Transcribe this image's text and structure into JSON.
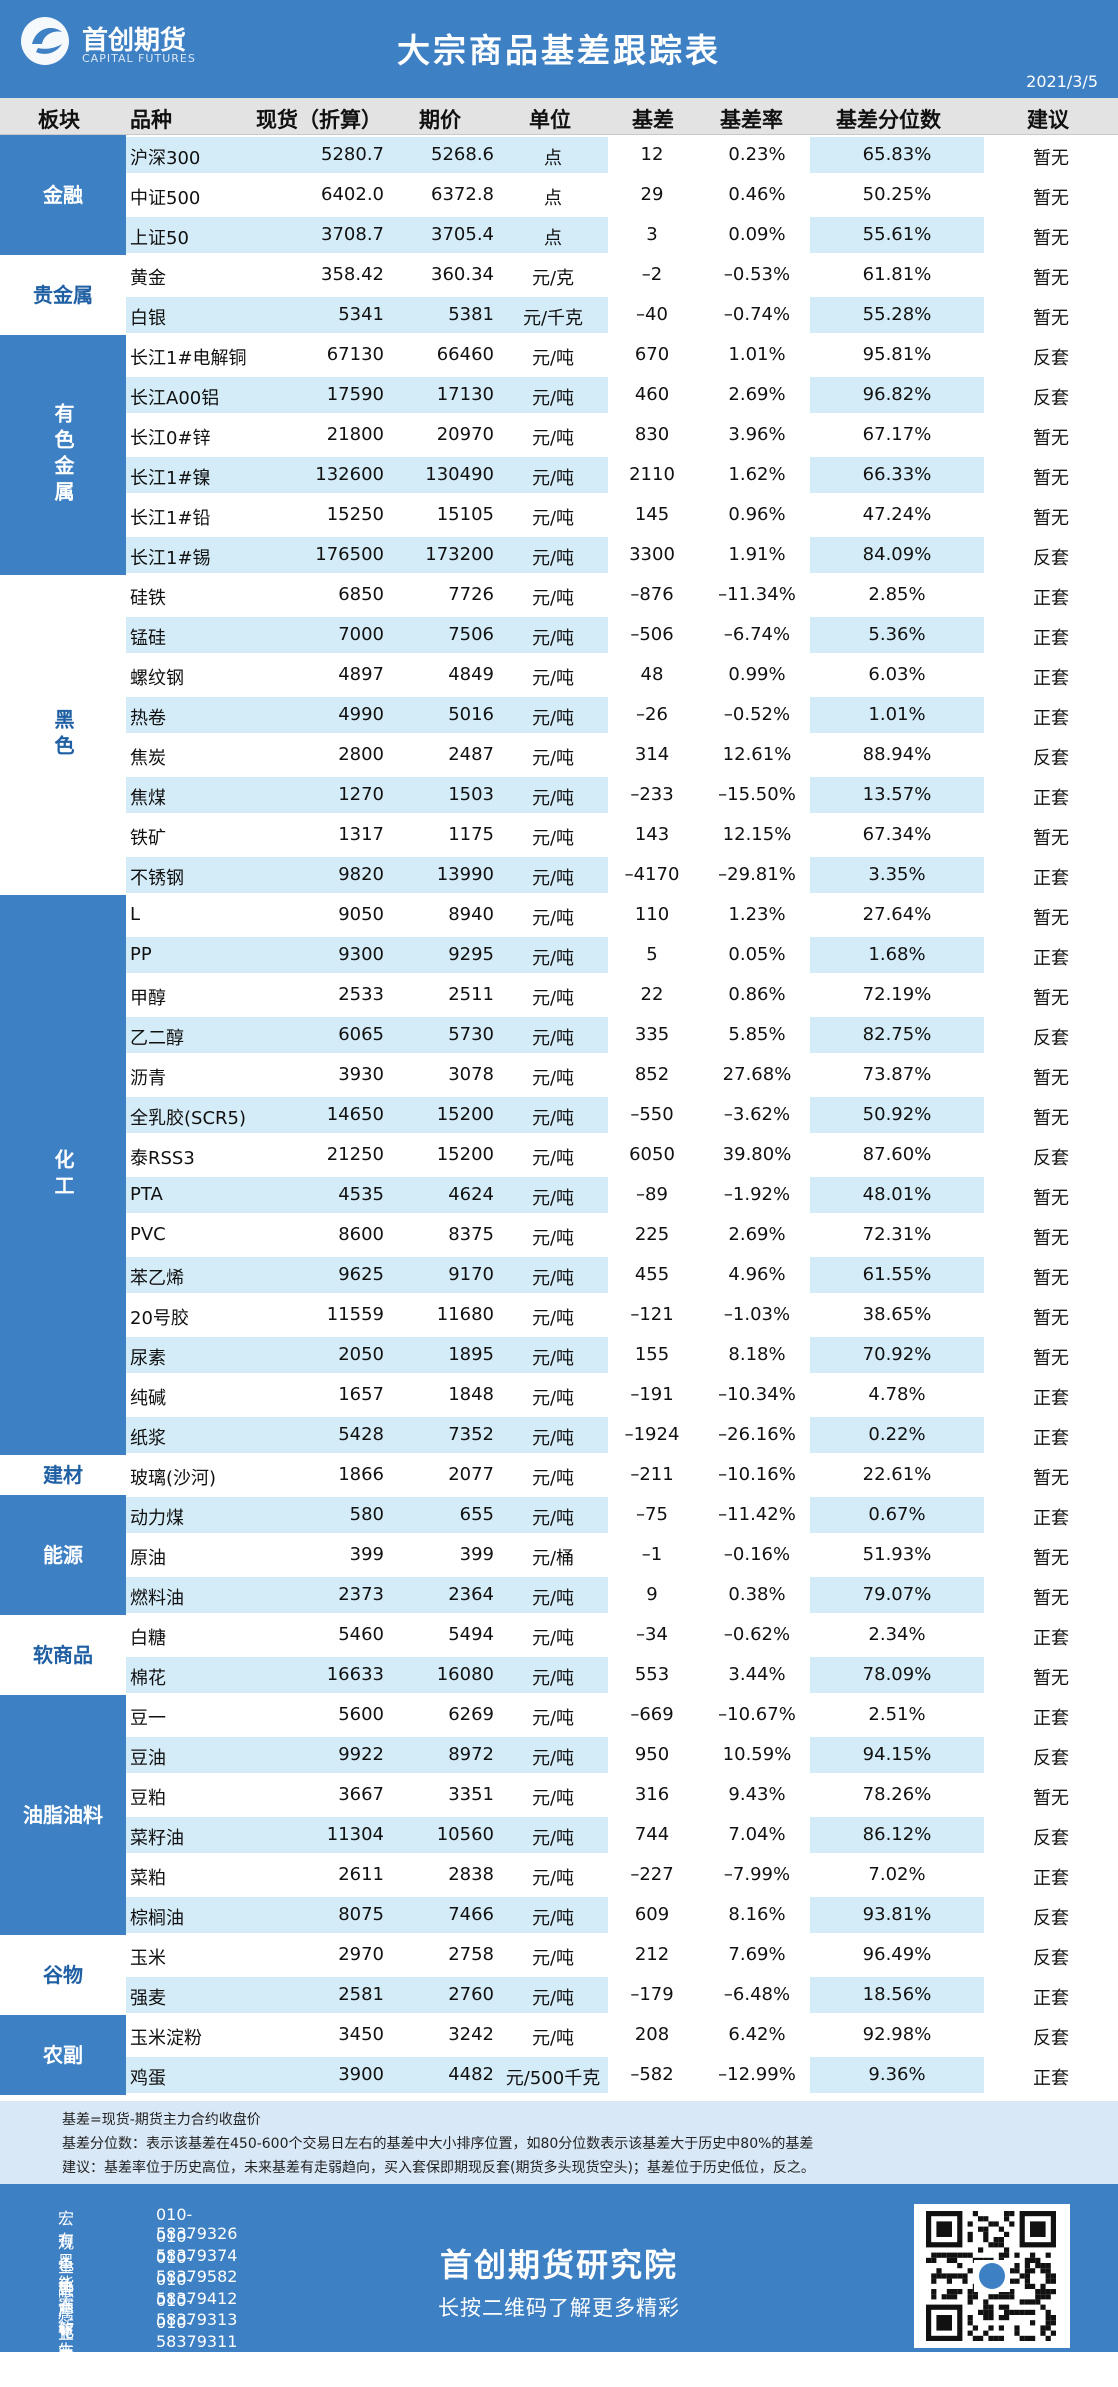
{
  "header": {
    "logo_text": "首创期货",
    "logo_sub": "CAPITAL FUTURES",
    "title": "大宗商品基差跟踪表",
    "date": "2021/3/5"
  },
  "columns": [
    "板块",
    "品种",
    "现货（折算）",
    "期价",
    "单位",
    "基差",
    "基差率",
    "基差分位数",
    "建议"
  ],
  "sectors": [
    {
      "name": "金融",
      "rows": [
        {
          "name": "沪深300",
          "spot": "5280.7",
          "futures": "5268.6",
          "unit": "点",
          "basis": "12",
          "basis_rate": "0.23%",
          "percentile": "65.83%",
          "advice": "暂无"
        },
        {
          "name": "中证500",
          "spot": "6402.0",
          "futures": "6372.8",
          "unit": "点",
          "basis": "29",
          "basis_rate": "0.46%",
          "percentile": "50.25%",
          "advice": "暂无"
        },
        {
          "name": "上证50",
          "spot": "3708.7",
          "futures": "3705.4",
          "unit": "点",
          "basis": "3",
          "basis_rate": "0.09%",
          "percentile": "55.61%",
          "advice": "暂无"
        }
      ]
    },
    {
      "name": "贵金属",
      "rows": [
        {
          "name": "黄金",
          "spot": "358.42",
          "futures": "360.34",
          "unit": "元/克",
          "basis": "–2",
          "basis_rate": "–0.53%",
          "percentile": "61.81%",
          "advice": "暂无"
        },
        {
          "name": "白银",
          "spot": "5341",
          "futures": "5381",
          "unit": "元/千克",
          "basis": "–40",
          "basis_rate": "–0.74%",
          "percentile": "55.28%",
          "advice": "暂无"
        }
      ]
    },
    {
      "name": "有色金属",
      "rows": [
        {
          "name": "长江1#电解铜",
          "spot": "67130",
          "futures": "66460",
          "unit": "元/吨",
          "basis": "670",
          "basis_rate": "1.01%",
          "percentile": "95.81%",
          "advice": "反套"
        },
        {
          "name": "长江A00铝",
          "spot": "17590",
          "futures": "17130",
          "unit": "元/吨",
          "basis": "460",
          "basis_rate": "2.69%",
          "percentile": "96.82%",
          "advice": "反套"
        },
        {
          "name": "长江0#锌",
          "spot": "21800",
          "futures": "20970",
          "unit": "元/吨",
          "basis": "830",
          "basis_rate": "3.96%",
          "percentile": "67.17%",
          "advice": "暂无"
        },
        {
          "name": "长江1#镍",
          "spot": "132600",
          "futures": "130490",
          "unit": "元/吨",
          "basis": "2110",
          "basis_rate": "1.62%",
          "percentile": "66.33%",
          "advice": "暂无"
        },
        {
          "name": "长江1#铅",
          "spot": "15250",
          "futures": "15105",
          "unit": "元/吨",
          "basis": "145",
          "basis_rate": "0.96%",
          "percentile": "47.24%",
          "advice": "暂无"
        },
        {
          "name": "长江1#锡",
          "spot": "176500",
          "futures": "173200",
          "unit": "元/吨",
          "basis": "3300",
          "basis_rate": "1.91%",
          "percentile": "84.09%",
          "advice": "反套"
        }
      ]
    },
    {
      "name": "黑色",
      "rows": [
        {
          "name": "硅铁",
          "spot": "6850",
          "futures": "7726",
          "unit": "元/吨",
          "basis": "–876",
          "basis_rate": "–11.34%",
          "percentile": "2.85%",
          "advice": "正套"
        },
        {
          "name": "锰硅",
          "spot": "7000",
          "futures": "7506",
          "unit": "元/吨",
          "basis": "–506",
          "basis_rate": "–6.74%",
          "percentile": "5.36%",
          "advice": "正套"
        },
        {
          "name": "螺纹钢",
          "spot": "4897",
          "futures": "4849",
          "unit": "元/吨",
          "basis": "48",
          "basis_rate": "0.99%",
          "percentile": "6.03%",
          "advice": "正套"
        },
        {
          "name": "热卷",
          "spot": "4990",
          "futures": "5016",
          "unit": "元/吨",
          "basis": "–26",
          "basis_rate": "–0.52%",
          "percentile": "1.01%",
          "advice": "正套"
        },
        {
          "name": "焦炭",
          "spot": "2800",
          "futures": "2487",
          "unit": "元/吨",
          "basis": "314",
          "basis_rate": "12.61%",
          "percentile": "88.94%",
          "advice": "反套"
        },
        {
          "name": "焦煤",
          "spot": "1270",
          "futures": "1503",
          "unit": "元/吨",
          "basis": "–233",
          "basis_rate": "–15.50%",
          "percentile": "13.57%",
          "advice": "正套"
        },
        {
          "name": "铁矿",
          "spot": "1317",
          "futures": "1175",
          "unit": "元/吨",
          "basis": "143",
          "basis_rate": "12.15%",
          "percentile": "67.34%",
          "advice": "暂无"
        },
        {
          "name": "不锈钢",
          "spot": "9820",
          "futures": "13990",
          "unit": "元/吨",
          "basis": "–4170",
          "basis_rate": "–29.81%",
          "percentile": "3.35%",
          "advice": "正套"
        }
      ]
    },
    {
      "name": "化工",
      "rows": [
        {
          "name": "L",
          "spot": "9050",
          "futures": "8940",
          "unit": "元/吨",
          "basis": "110",
          "basis_rate": "1.23%",
          "percentile": "27.64%",
          "advice": "暂无"
        },
        {
          "name": "PP",
          "spot": "9300",
          "futures": "9295",
          "unit": "元/吨",
          "basis": "5",
          "basis_rate": "0.05%",
          "percentile": "1.68%",
          "advice": "正套"
        },
        {
          "name": "甲醇",
          "spot": "2533",
          "futures": "2511",
          "unit": "元/吨",
          "basis": "22",
          "basis_rate": "0.86%",
          "percentile": "72.19%",
          "advice": "暂无"
        },
        {
          "name": "乙二醇",
          "spot": "6065",
          "futures": "5730",
          "unit": "元/吨",
          "basis": "335",
          "basis_rate": "5.85%",
          "percentile": "82.75%",
          "advice": "反套"
        },
        {
          "name": "沥青",
          "spot": "3930",
          "futures": "3078",
          "unit": "元/吨",
          "basis": "852",
          "basis_rate": "27.68%",
          "percentile": "73.87%",
          "advice": "暂无"
        },
        {
          "name": "全乳胶(SCR5)",
          "spot": "14650",
          "futures": "15200",
          "unit": "元/吨",
          "basis": "–550",
          "basis_rate": "–3.62%",
          "percentile": "50.92%",
          "advice": "暂无"
        },
        {
          "name": "泰RSS3",
          "spot": "21250",
          "futures": "15200",
          "unit": "元/吨",
          "basis": "6050",
          "basis_rate": "39.80%",
          "percentile": "87.60%",
          "advice": "反套"
        },
        {
          "name": "PTA",
          "spot": "4535",
          "futures": "4624",
          "unit": "元/吨",
          "basis": "–89",
          "basis_rate": "–1.92%",
          "percentile": "48.01%",
          "advice": "暂无"
        },
        {
          "name": "PVC",
          "spot": "8600",
          "futures": "8375",
          "unit": "元/吨",
          "basis": "225",
          "basis_rate": "2.69%",
          "percentile": "72.31%",
          "advice": "暂无"
        },
        {
          "name": "苯乙烯",
          "spot": "9625",
          "futures": "9170",
          "unit": "元/吨",
          "basis": "455",
          "basis_rate": "4.96%",
          "percentile": "61.55%",
          "advice": "暂无"
        },
        {
          "name": "20号胶",
          "spot": "11559",
          "futures": "11680",
          "unit": "元/吨",
          "basis": "–121",
          "basis_rate": "–1.03%",
          "percentile": "38.65%",
          "advice": "暂无"
        },
        {
          "name": "尿素",
          "spot": "2050",
          "futures": "1895",
          "unit": "元/吨",
          "basis": "155",
          "basis_rate": "8.18%",
          "percentile": "70.92%",
          "advice": "暂无"
        },
        {
          "name": "纯碱",
          "spot": "1657",
          "futures": "1848",
          "unit": "元/吨",
          "basis": "–191",
          "basis_rate": "–10.34%",
          "percentile": "4.78%",
          "advice": "正套"
        },
        {
          "name": "纸浆",
          "spot": "5428",
          "futures": "7352",
          "unit": "元/吨",
          "basis": "–1924",
          "basis_rate": "–26.16%",
          "percentile": "0.22%",
          "advice": "正套"
        }
      ]
    },
    {
      "name": "建材",
      "rows": [
        {
          "name": "玻璃(沙河)",
          "spot": "1866",
          "futures": "2077",
          "unit": "元/吨",
          "basis": "–211",
          "basis_rate": "–10.16%",
          "percentile": "22.61%",
          "advice": "暂无"
        }
      ]
    },
    {
      "name": "能源",
      "rows": [
        {
          "name": "动力煤",
          "spot": "580",
          "futures": "655",
          "unit": "元/吨",
          "basis": "–75",
          "basis_rate": "–11.42%",
          "percentile": "0.67%",
          "advice": "正套"
        },
        {
          "name": "原油",
          "spot": "399",
          "futures": "399",
          "unit": "元/桶",
          "basis": "–1",
          "basis_rate": "–0.16%",
          "percentile": "51.93%",
          "advice": "暂无"
        },
        {
          "name": "燃料油",
          "spot": "2373",
          "futures": "2364",
          "unit": "元/吨",
          "basis": "9",
          "basis_rate": "0.38%",
          "percentile": "79.07%",
          "advice": "暂无"
        }
      ]
    },
    {
      "name": "软商品",
      "rows": [
        {
          "name": "白糖",
          "spot": "5460",
          "futures": "5494",
          "unit": "元/吨",
          "basis": "–34",
          "basis_rate": "–0.62%",
          "percentile": "2.34%",
          "advice": "正套"
        },
        {
          "name": "棉花",
          "spot": "16633",
          "futures": "16080",
          "unit": "元/吨",
          "basis": "553",
          "basis_rate": "3.44%",
          "percentile": "78.09%",
          "advice": "暂无"
        }
      ]
    },
    {
      "name": "油脂油料",
      "rows": [
        {
          "name": "豆一",
          "spot": "5600",
          "futures": "6269",
          "unit": "元/吨",
          "basis": "–669",
          "basis_rate": "–10.67%",
          "percentile": "2.51%",
          "advice": "正套"
        },
        {
          "name": "豆油",
          "spot": "9922",
          "futures": "8972",
          "unit": "元/吨",
          "basis": "950",
          "basis_rate": "10.59%",
          "percentile": "94.15%",
          "advice": "反套"
        },
        {
          "name": "豆粕",
          "spot": "3667",
          "futures": "3351",
          "unit": "元/吨",
          "basis": "316",
          "basis_rate": "9.43%",
          "percentile": "78.26%",
          "advice": "暂无"
        },
        {
          "name": "菜籽油",
          "spot": "11304",
          "futures": "10560",
          "unit": "元/吨",
          "basis": "744",
          "basis_rate": "7.04%",
          "percentile": "86.12%",
          "advice": "反套"
        },
        {
          "name": "菜粕",
          "spot": "2611",
          "futures": "2838",
          "unit": "元/吨",
          "basis": "–227",
          "basis_rate": "–7.99%",
          "percentile": "7.02%",
          "advice": "正套"
        },
        {
          "name": "棕榈油",
          "spot": "8075",
          "futures": "7466",
          "unit": "元/吨",
          "basis": "609",
          "basis_rate": "8.16%",
          "percentile": "93.81%",
          "advice": "反套"
        }
      ]
    },
    {
      "name": "谷物",
      "rows": [
        {
          "name": "玉米",
          "spot": "2970",
          "futures": "2758",
          "unit": "元/吨",
          "basis": "212",
          "basis_rate": "7.69%",
          "percentile": "96.49%",
          "advice": "反套"
        },
        {
          "name": "强麦",
          "spot": "2581",
          "futures": "2760",
          "unit": "元/吨",
          "basis": "–179",
          "basis_rate": "–6.48%",
          "percentile": "18.56%",
          "advice": "正套"
        }
      ]
    },
    {
      "name": "农副",
      "rows": [
        {
          "name": "玉米淀粉",
          "spot": "3450",
          "futures": "3242",
          "unit": "元/吨",
          "basis": "208",
          "basis_rate": "6.42%",
          "percentile": "92.98%",
          "advice": "反套"
        },
        {
          "name": "鸡蛋",
          "spot": "3900",
          "futures": "4482",
          "unit": "元/500千克",
          "basis": "–582",
          "basis_rate": "–12.99%",
          "percentile": "9.36%",
          "advice": "正套"
        }
      ]
    }
  ],
  "notes": [
    "基差=现货-期货主力合约收盘价",
    "基差分位数：表示该基差在450-600个交易日左右的基差中大小排序位置，如80分位数表示该基差大于历史中80%的基差",
    "建议：基差率位于历史高位，未来基差有走弱趋向，买入套保即期现反套(期货多头现货空头)；基差位于历史低位，反之。"
  ],
  "footer": {
    "contacts": [
      {
        "label": "宏观金融",
        "phone": "010-58379326"
      },
      {
        "label": "有色金属",
        "phone": "010-58379374"
      },
      {
        "label": "黑色产业链",
        "phone": "010-58379582"
      },
      {
        "label": "能源化工",
        "phone": "010-58379412"
      },
      {
        "label": "农软商品",
        "phone": "010-58379313"
      },
      {
        "label": "衍生品",
        "phone": "010-58379311"
      }
    ],
    "institute": "首创期货研究院",
    "slogan": "长按二维码了解更多精彩"
  }
}
